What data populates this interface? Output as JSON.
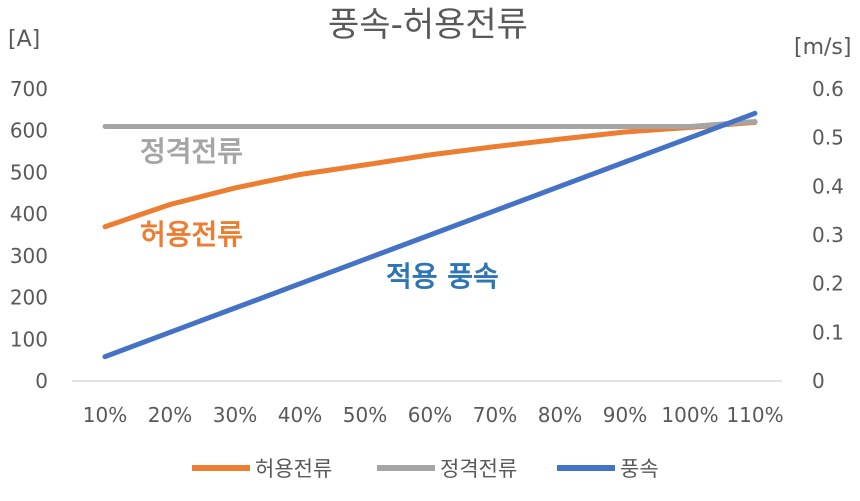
{
  "chart_data": {
    "type": "line",
    "title": "풍속-허용전류",
    "y_left_label": "[A]",
    "y_right_label": "[m/s]",
    "categories": [
      "10%",
      "20%",
      "30%",
      "40%",
      "50%",
      "60%",
      "70%",
      "80%",
      "90%",
      "100%",
      "110%"
    ],
    "y_left_ticks": [
      "0",
      "100",
      "200",
      "300",
      "400",
      "500",
      "600",
      "700"
    ],
    "y_right_ticks": [
      "0",
      "0.1",
      "0.2",
      "0.3",
      "0.4",
      "0.5",
      "0.6"
    ],
    "ylim_left": [
      0,
      700
    ],
    "ylim_right": [
      0,
      0.6
    ],
    "grid": false,
    "legend_position": "bottom",
    "series": [
      {
        "name": "허용전류",
        "axis": "left",
        "color": "#ED7D31",
        "values": [
          370,
          423,
          463,
          495,
          518,
          542,
          562,
          580,
          597,
          608,
          620
        ]
      },
      {
        "name": "정격전류",
        "axis": "left",
        "color": "#A5A5A5",
        "values": [
          610,
          610,
          610,
          610,
          610,
          610,
          610,
          610,
          610,
          610,
          622
        ]
      },
      {
        "name": "풍속",
        "axis": "right",
        "color": "#4472C4",
        "values": [
          0.05,
          0.1,
          0.15,
          0.2,
          0.25,
          0.3,
          0.35,
          0.4,
          0.45,
          0.5,
          0.55
        ]
      }
    ],
    "annotations": [
      {
        "text": "정격전류",
        "color": "#A5A5A5"
      },
      {
        "text": "허용전류",
        "color": "#ED7D31"
      },
      {
        "text": "적용 풍속",
        "color": "#2E75B6"
      }
    ]
  }
}
